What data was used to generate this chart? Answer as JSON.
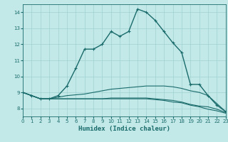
{
  "xlabel": "Humidex (Indice chaleur)",
  "background_color": "#c2e8e8",
  "grid_color": "#a0d0d0",
  "line_color": "#1a6b6b",
  "xlim": [
    0,
    23
  ],
  "ylim": [
    7.5,
    14.5
  ],
  "yticks": [
    8,
    9,
    10,
    11,
    12,
    13,
    14
  ],
  "xticks": [
    0,
    1,
    2,
    3,
    4,
    5,
    6,
    7,
    8,
    9,
    10,
    11,
    12,
    13,
    14,
    15,
    16,
    17,
    18,
    19,
    20,
    21,
    22,
    23
  ],
  "series": [
    [
      9.0,
      8.8,
      8.6,
      8.6,
      8.8,
      9.4,
      10.5,
      11.7,
      11.7,
      12.0,
      12.8,
      12.5,
      12.8,
      14.2,
      14.0,
      13.5,
      12.8,
      12.1,
      11.5,
      9.5,
      9.5,
      8.8,
      8.2,
      7.8
    ],
    [
      9.0,
      8.8,
      8.6,
      8.6,
      8.7,
      8.8,
      8.85,
      8.9,
      9.0,
      9.1,
      9.2,
      9.25,
      9.3,
      9.35,
      9.4,
      9.4,
      9.4,
      9.35,
      9.25,
      9.1,
      9.0,
      8.8,
      8.3,
      7.8
    ],
    [
      9.0,
      8.8,
      8.6,
      8.6,
      8.6,
      8.6,
      8.6,
      8.6,
      8.6,
      8.6,
      8.65,
      8.65,
      8.65,
      8.65,
      8.65,
      8.6,
      8.55,
      8.5,
      8.4,
      8.25,
      8.15,
      8.1,
      7.95,
      7.75
    ],
    [
      9.0,
      8.8,
      8.6,
      8.6,
      8.6,
      8.6,
      8.6,
      8.6,
      8.6,
      8.6,
      8.6,
      8.6,
      8.6,
      8.6,
      8.6,
      8.55,
      8.5,
      8.4,
      8.35,
      8.2,
      8.1,
      7.95,
      7.85,
      7.7
    ]
  ]
}
